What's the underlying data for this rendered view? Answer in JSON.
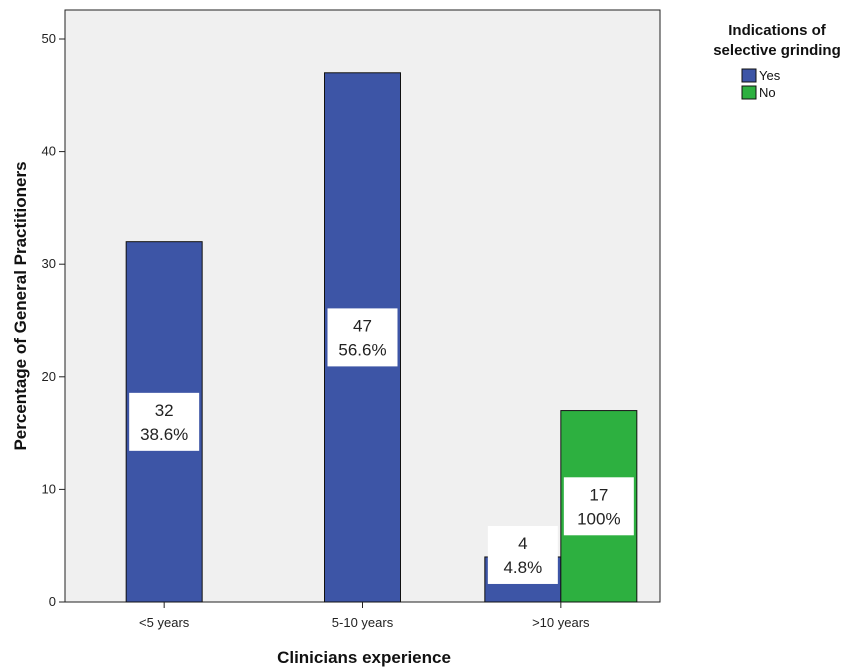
{
  "chart_data": {
    "type": "bar",
    "title": "",
    "xlabel": "Clinicians experience",
    "ylabel": "Percentage of General Practitioners",
    "categories": [
      "<5 years",
      "5-10 years",
      ">10 years"
    ],
    "ylim": [
      0,
      52
    ],
    "yticks": [
      "0",
      "10",
      "20",
      "30",
      "40",
      "50"
    ],
    "grid": false,
    "legend": {
      "title": "Indications of selective grinding",
      "title_lines": [
        "Indications of",
        "selective grinding"
      ],
      "placement": "top-right"
    },
    "series": [
      {
        "name": "Yes",
        "color": "#3d55a6",
        "values": [
          32,
          47,
          4
        ],
        "labels": [
          [
            "32",
            "38.6%"
          ],
          [
            "47",
            "56.6%"
          ],
          [
            "4",
            "4.8%"
          ]
        ]
      },
      {
        "name": "No",
        "color": "#2db040",
        "values": [
          null,
          null,
          17
        ],
        "labels": [
          null,
          null,
          [
            "17",
            "100%"
          ]
        ]
      }
    ]
  }
}
